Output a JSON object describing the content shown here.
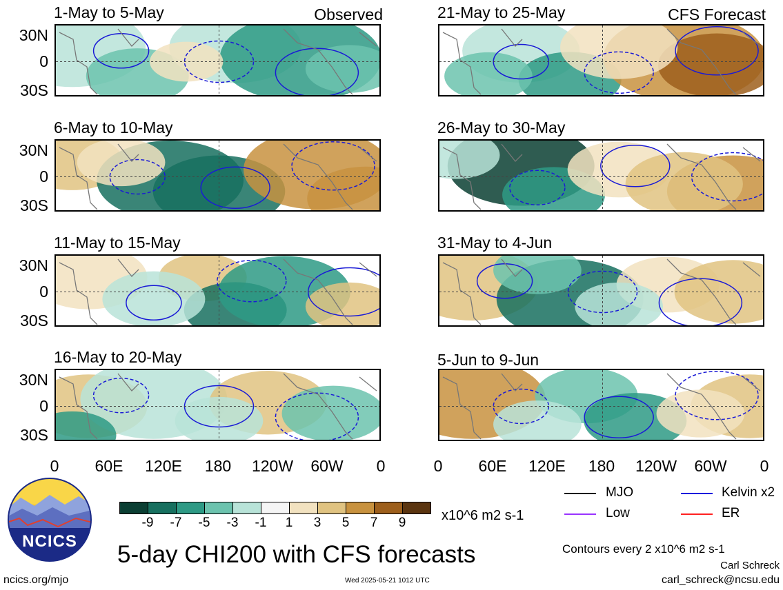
{
  "panels_left": [
    {
      "title": "1-May to 5-May",
      "tag": "Observed"
    },
    {
      "title": "6-May to 10-May",
      "tag": ""
    },
    {
      "title": "11-May to 15-May",
      "tag": ""
    },
    {
      "title": "16-May to 20-May",
      "tag": ""
    }
  ],
  "panels_right": [
    {
      "title": "21-May to 25-May",
      "tag": "CFS Forecast"
    },
    {
      "title": "26-May to 30-May",
      "tag": ""
    },
    {
      "title": "31-May to 4-Jun",
      "tag": ""
    },
    {
      "title": "5-Jun to 9-Jun",
      "tag": ""
    }
  ],
  "lat_labels": [
    "30N",
    "0",
    "30S"
  ],
  "lon_labels": [
    "0",
    "60E",
    "120E",
    "180",
    "120W",
    "60W",
    "0"
  ],
  "colorbar": {
    "colors": [
      "#0b3f33",
      "#17705f",
      "#2e9a85",
      "#6cc3ae",
      "#b8e3d8",
      "#f5f5f5",
      "#f2e2c0",
      "#e0c381",
      "#c8923f",
      "#9d5f1c",
      "#5b3510"
    ],
    "labels": [
      "-9",
      "-7",
      "-5",
      "-3",
      "-1",
      "1",
      "3",
      "5",
      "7",
      "9"
    ],
    "units": "x10^6 m2 s-1"
  },
  "legend": [
    {
      "label": "MJO",
      "color": "#000000"
    },
    {
      "label": "Kelvin x2",
      "color": "#0000dd"
    },
    {
      "label": "Low",
      "color": "#9933ff"
    },
    {
      "label": "ER",
      "color": "#ff2020"
    }
  ],
  "main_title": "5-day CHI200 with CFS forecasts",
  "contour_note": "Contours every 2 x10^6 m2 s-1",
  "author": "Carl Schreck",
  "email": "carl_schreck@ncsu.edu",
  "site": "ncics.org/mjo",
  "timestamp": "Wed 2025-05-21 1012 UTC",
  "logo_text": "NCICS"
}
